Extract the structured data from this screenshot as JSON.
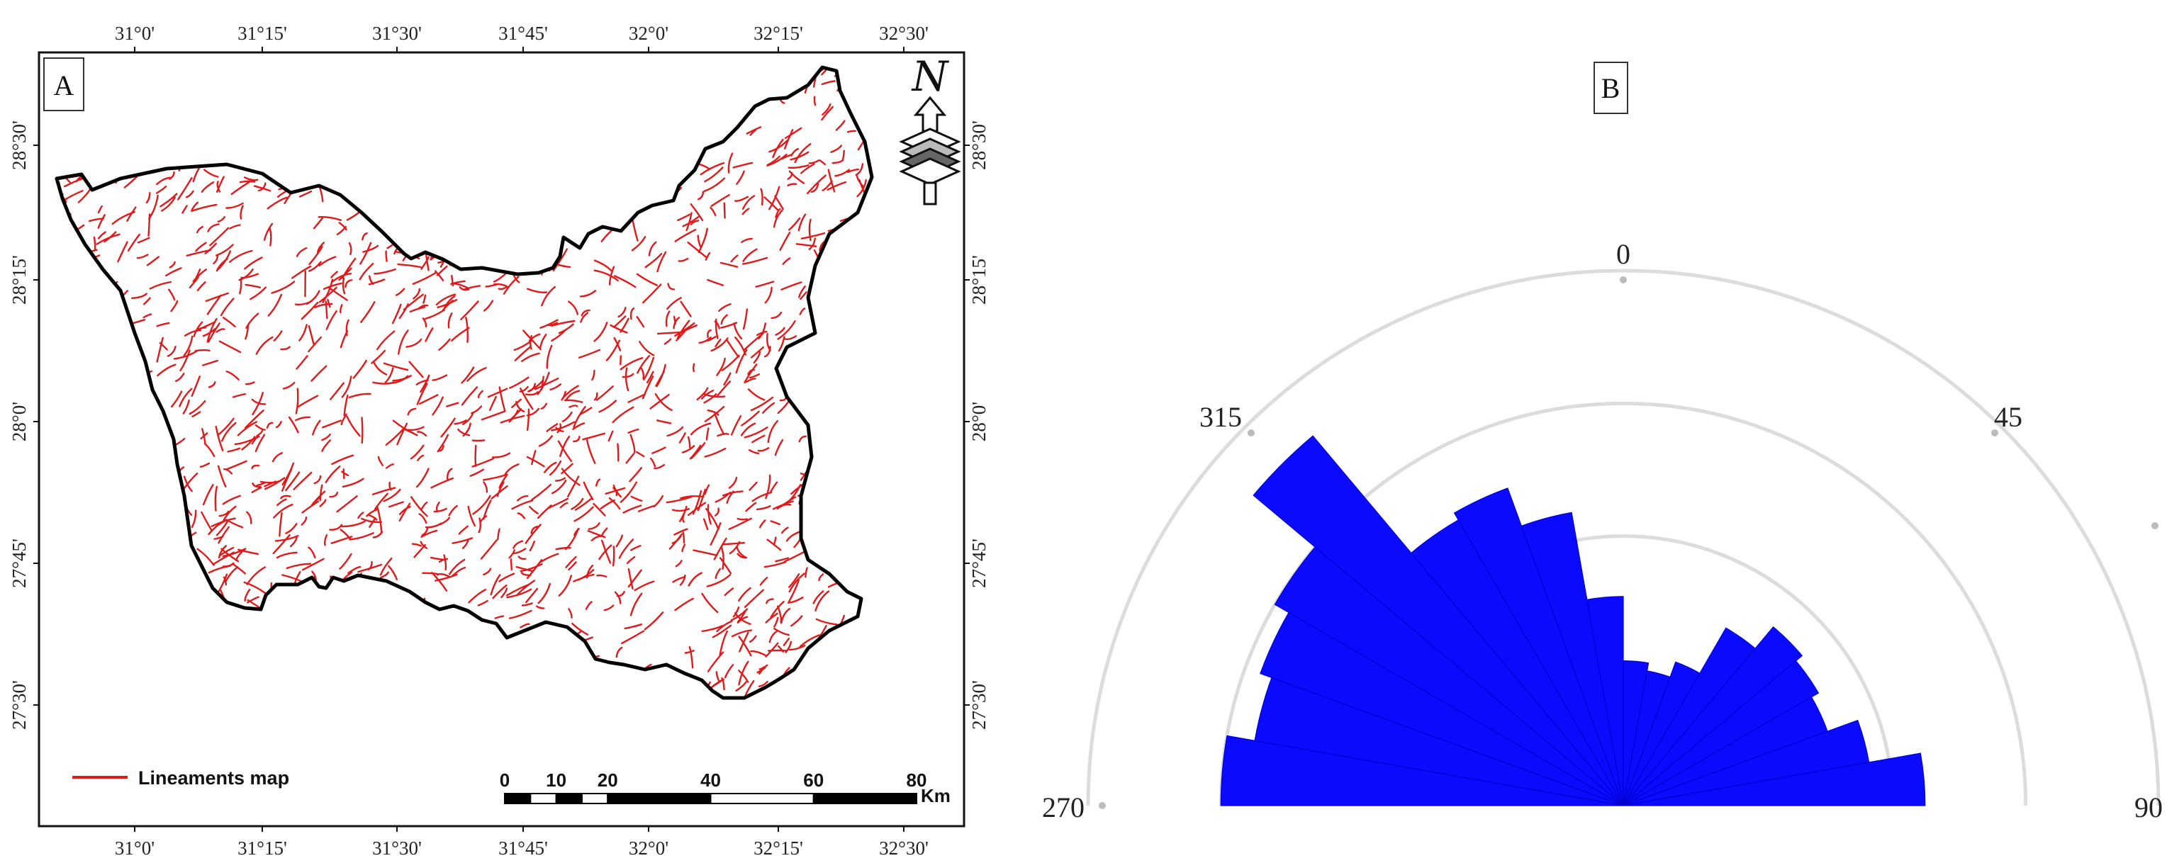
{
  "panel_a": {
    "label": "A",
    "lon_ticks": [
      "31°0'",
      "31°15'",
      "31°30'",
      "31°45'",
      "32°0'",
      "32°15'",
      "32°30'"
    ],
    "lat_ticks": [
      "28°30'",
      "28°15'",
      "28°0'",
      "27°45'",
      "27°30'"
    ],
    "north_arrow": {
      "letter": "N",
      "icon": "north-arrow-icon"
    },
    "legend": {
      "label": "Lineaments map",
      "color": "#e0191b"
    },
    "scale_bar": {
      "ticks": [
        "0",
        "10",
        "20",
        "40",
        "60",
        "80"
      ],
      "unit": "Km"
    },
    "boundary_color": "#000000"
  },
  "panel_b": {
    "label": "B",
    "angle_labels": [
      "0",
      "45",
      "90",
      "270",
      "315"
    ],
    "bar_color": "#0a0aff",
    "ring_color": "#dcdcdc"
  },
  "chart_data": {
    "type": "rose",
    "title": "",
    "angle_range_deg": [
      270,
      90
    ],
    "bin_width_deg": 10,
    "bins_deg": [
      270,
      280,
      290,
      300,
      310,
      320,
      330,
      340,
      350,
      0,
      10,
      20,
      30,
      40,
      50,
      60,
      70,
      80
    ],
    "values": [
      1.0,
      0.93,
      0.96,
      1.0,
      1.2,
      0.82,
      0.84,
      0.74,
      0.52,
      0.36,
      0.34,
      0.38,
      0.51,
      0.58,
      0.56,
      0.54,
      0.62,
      0.75
    ],
    "ring_levels": [
      0.33,
      0.67,
      1.0,
      1.33
    ],
    "grid": true
  }
}
